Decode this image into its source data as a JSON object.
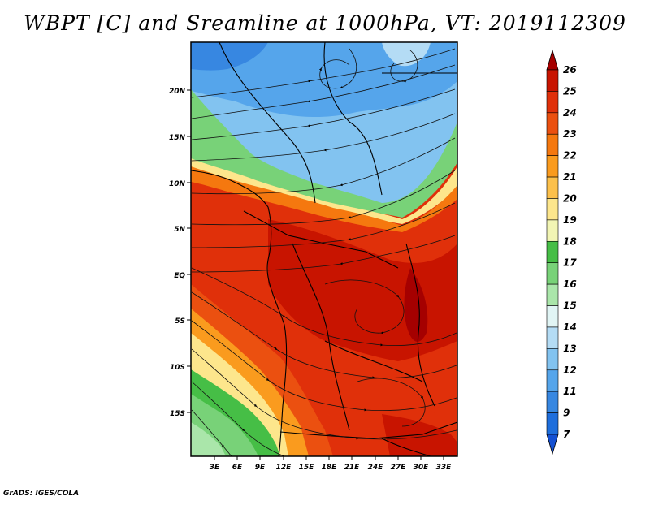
{
  "title": "WBPT [C] and Sreamline at 1000hPa, VT: 2019112309",
  "credit": "GrADS: IGES/COLA",
  "map": {
    "lat_labels": [
      "20N",
      "15N",
      "10N",
      "5N",
      "EQ",
      "5S",
      "10S",
      "15S"
    ],
    "lon_labels": [
      "3E",
      "6E",
      "9E",
      "12E",
      "15E",
      "18E",
      "21E",
      "24E",
      "27E",
      "30E",
      "33E"
    ]
  },
  "colorbar": {
    "labels": [
      "26",
      "25",
      "24",
      "23",
      "22",
      "21",
      "20",
      "19",
      "18",
      "17",
      "16",
      "15",
      "14",
      "13",
      "12",
      "11",
      "9",
      "7"
    ],
    "colors": [
      "#a50000",
      "#c81400",
      "#e0300a",
      "#eb5010",
      "#f5780f",
      "#fa9b1e",
      "#fcc04b",
      "#fde68c",
      "#f2f5b4",
      "#46be46",
      "#78d278",
      "#aae6aa",
      "#e1f5f5",
      "#b4dcf5",
      "#82c3f0",
      "#55a5eb",
      "#3787e1",
      "#1e6edc",
      "#1450d2"
    ]
  }
}
